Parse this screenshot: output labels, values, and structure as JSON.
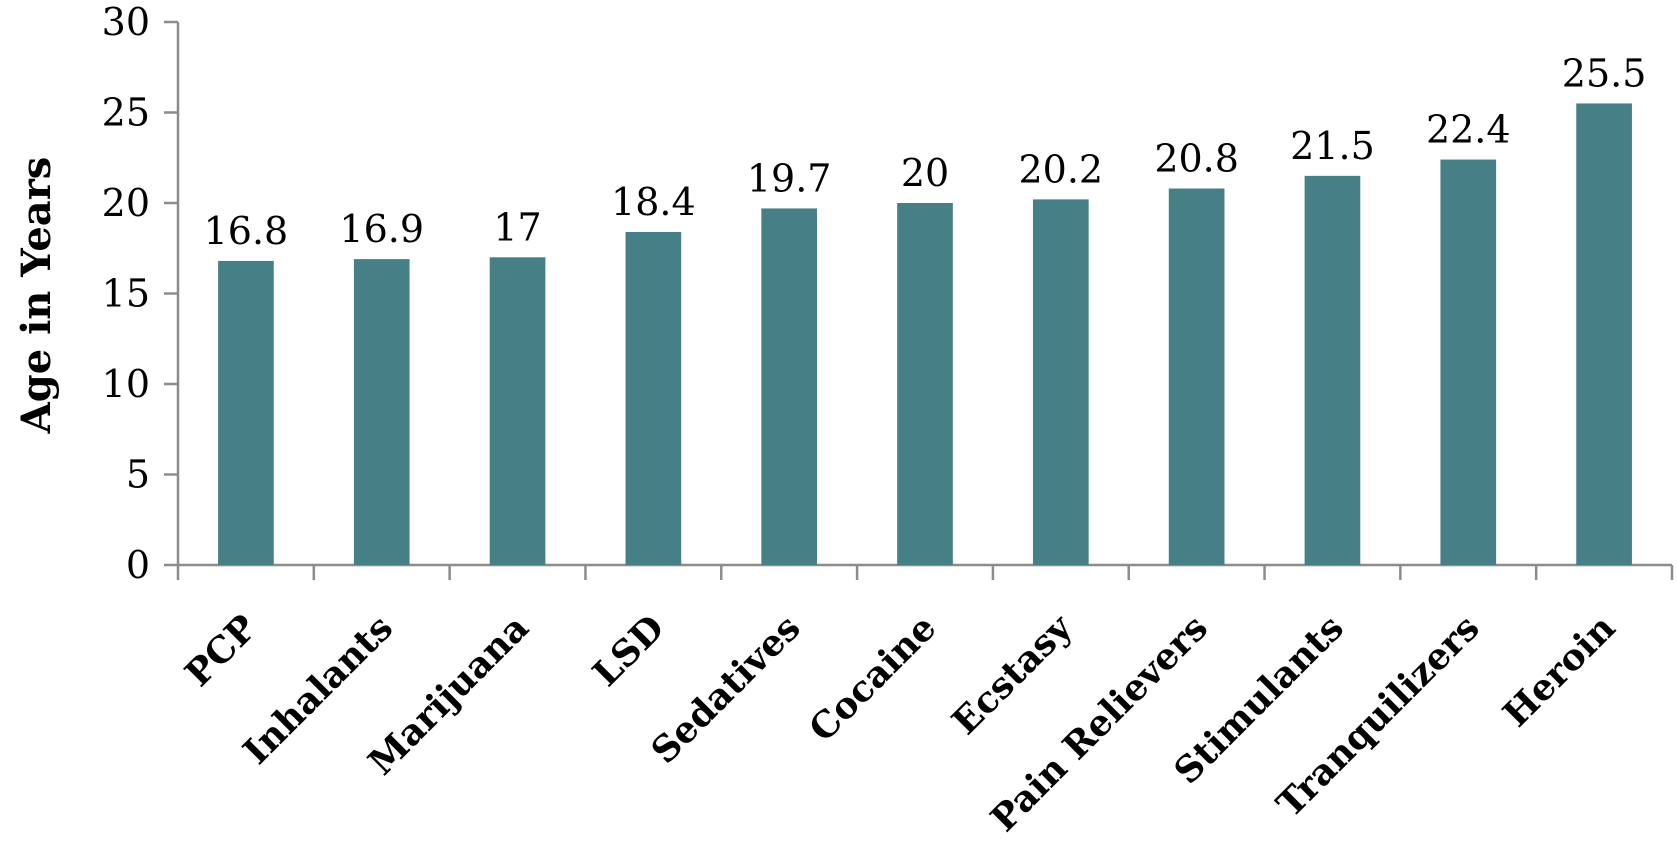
{
  "chart_data": {
    "type": "bar",
    "title": "",
    "xlabel": "",
    "ylabel": "Age in Years",
    "ylim": [
      0,
      30
    ],
    "yticks": [
      0,
      5,
      10,
      15,
      20,
      25,
      30
    ],
    "grid": false,
    "categories": [
      "PCP",
      "Inhalants",
      "Marijuana",
      "LSD",
      "Sedatives",
      "Cocaine",
      "Ecstasy",
      "Pain Relievers",
      "Stimulants",
      "Tranquilizers",
      "Heroin"
    ],
    "values": [
      16.8,
      16.9,
      17,
      18.4,
      19.7,
      20,
      20.2,
      20.8,
      21.5,
      22.4,
      25.5
    ],
    "data_labels": [
      "16.8",
      "16.9",
      "17",
      "18.4",
      "19.7",
      "20",
      "20.2",
      "20.8",
      "21.5",
      "22.4",
      "25.5"
    ],
    "bar_color": "#467f86"
  }
}
